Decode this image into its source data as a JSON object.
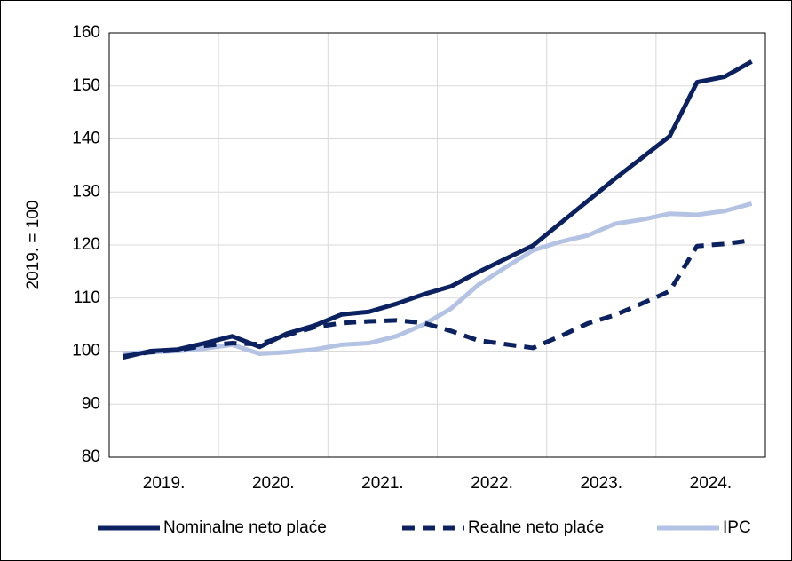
{
  "chart_data": {
    "type": "line",
    "y_label": "2019. = 100",
    "categories": [
      "2019.",
      null,
      null,
      null,
      "2020.",
      null,
      null,
      null,
      "2021.",
      null,
      null,
      null,
      "2022.",
      null,
      null,
      null,
      "2023.",
      null,
      null,
      null,
      "2024.",
      null,
      null,
      null
    ],
    "series": [
      {
        "name": "Nominalne neto plaće",
        "color": "#0c2260",
        "dash": false,
        "values": [
          98.8,
          100,
          100.3,
          101.5,
          102.8,
          100.8,
          103.3,
          104.8,
          106.9,
          107.4,
          108.9,
          110.7,
          112.2,
          114.9,
          117.4,
          119.9,
          124.1,
          128.3,
          132.5,
          136.5,
          140.5,
          150.7,
          151.7,
          154.6
        ]
      },
      {
        "name": "Realne neto plaće",
        "color": "#0c2260",
        "dash": true,
        "values": [
          99,
          99.8,
          100.2,
          101,
          101.5,
          101.3,
          103,
          104.5,
          105.3,
          105.6,
          105.8,
          105.3,
          103.8,
          102,
          101.3,
          100.6,
          102.8,
          105.2,
          106.8,
          109,
          111.3,
          119.8,
          120.2,
          120.9
        ]
      },
      {
        "name": "IPC",
        "color": "#b4c3e3",
        "dash": false,
        "values": [
          99.6,
          99.8,
          100,
          100.5,
          101.2,
          99.5,
          99.8,
          100.3,
          101.2,
          101.5,
          102.8,
          105,
          108,
          112.5,
          115.8,
          119,
          120.6,
          121.8,
          124,
          124.8,
          125.9,
          125.7,
          126.4,
          127.8
        ]
      }
    ],
    "ylim": [
      80,
      160
    ],
    "yticks": [
      80,
      90,
      100,
      110,
      120,
      130,
      140,
      150,
      160
    ],
    "grid": true,
    "legend": "bottom"
  }
}
